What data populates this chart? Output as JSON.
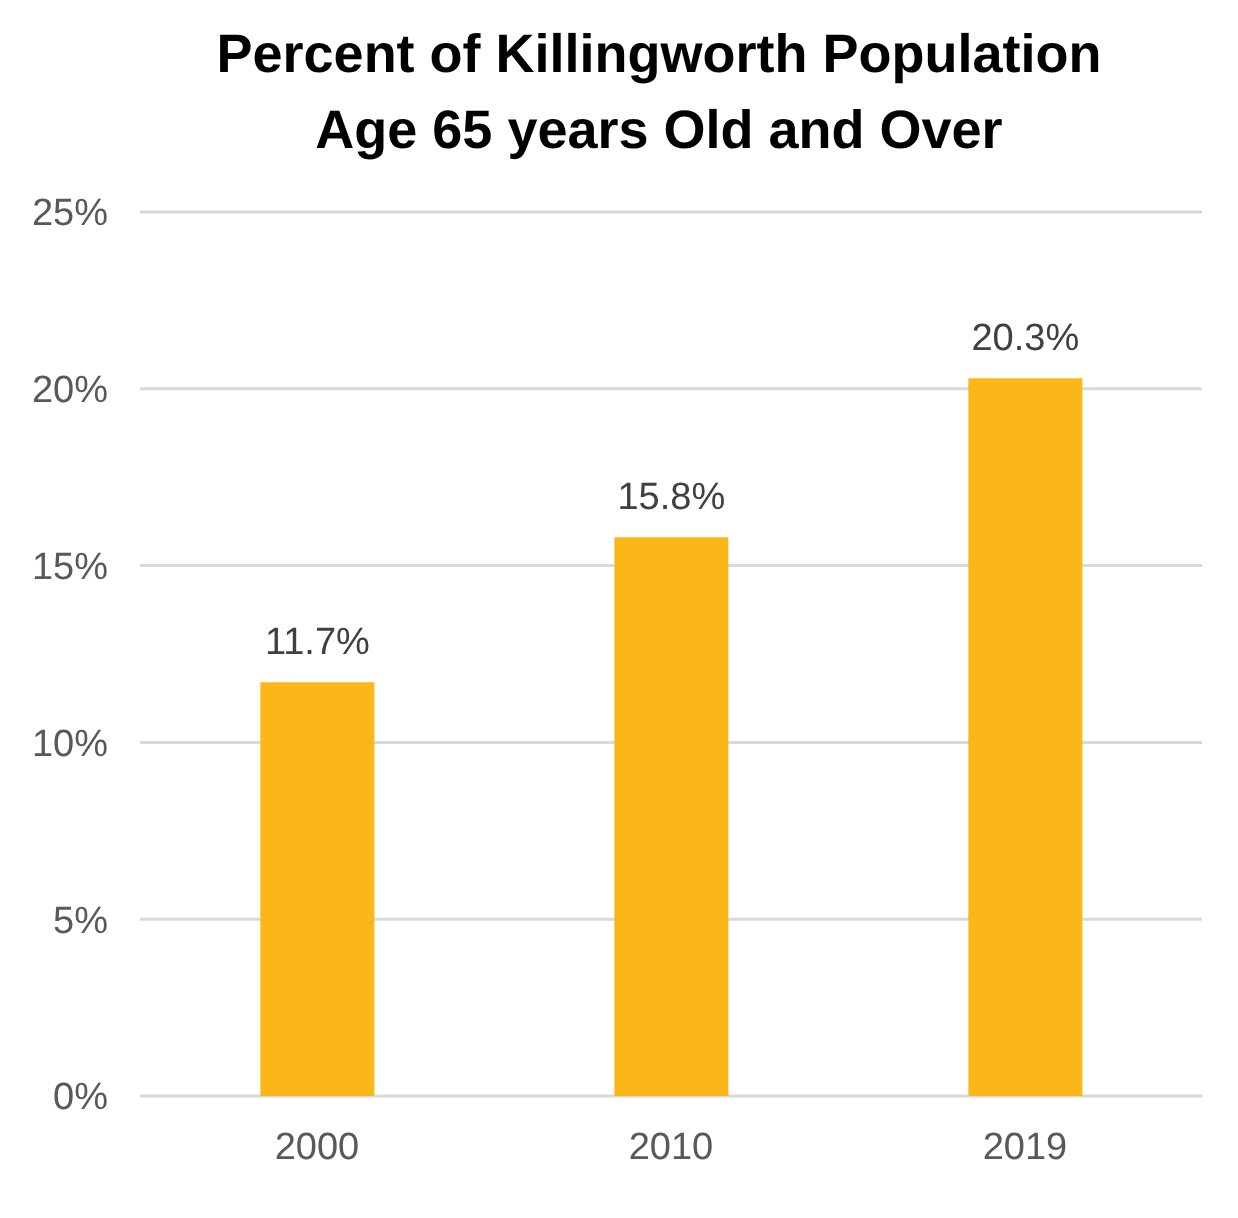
{
  "chart_data": {
    "type": "bar",
    "title": "Percent of Killingworth Population Age 65 years Old and Over",
    "categories": [
      "2000",
      "2010",
      "2019"
    ],
    "values": [
      11.7,
      15.8,
      20.3
    ],
    "value_labels": [
      "11.7%",
      "15.8%",
      "20.3%"
    ],
    "color": "#fbb61a",
    "ylim": [
      0,
      25
    ],
    "yticks": [
      {
        "value": 0,
        "label": "0%"
      },
      {
        "value": 5,
        "label": "5%"
      },
      {
        "value": 10,
        "label": "10%"
      },
      {
        "value": 15,
        "label": "15%"
      },
      {
        "value": 20,
        "label": "20%"
      },
      {
        "value": 25,
        "label": "25%"
      }
    ],
    "grid": "y"
  }
}
